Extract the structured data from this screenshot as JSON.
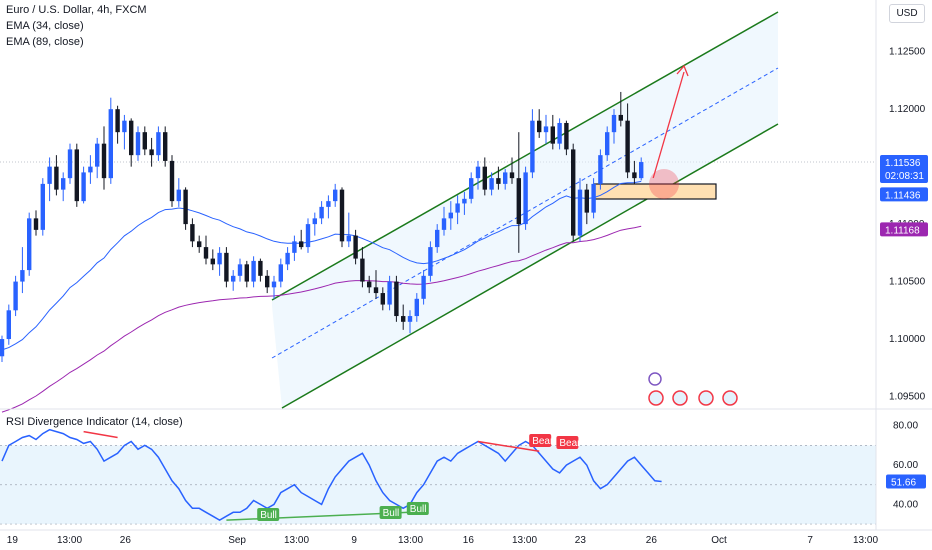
{
  "legend": {
    "title": "Euro / U.S. Dollar, 4h, FXCM",
    "ema1": "EMA (34, close)",
    "ema2": "EMA (89, close)"
  },
  "rsi_legend": "RSI Divergence Indicator (14, close)",
  "currency": "USD",
  "price_axis": {
    "ticks": [
      "1.12500",
      "1.12000",
      "1.11500",
      "1.11000",
      "1.10500",
      "1.10000",
      "1.09500"
    ],
    "ticks_values": [
      1.125,
      1.12,
      1.115,
      1.11,
      1.105,
      1.1,
      1.095
    ],
    "last_price": "1.11536",
    "countdown": "02:08:31",
    "ema34_value": "1.11436",
    "ema89_value": "1.11168"
  },
  "rsi_axis": {
    "ticks": [
      "80.00",
      "60.00",
      "40.00"
    ],
    "ticks_values": [
      80,
      60,
      40
    ],
    "current": "51.66"
  },
  "time_axis": [
    "19",
    "13:00",
    "26",
    "Sep",
    "13:00",
    "9",
    "13:00",
    "16",
    "13:00",
    "23",
    "26",
    "Oct",
    "7",
    "13:00"
  ],
  "signals": [
    "Bull",
    "Bull",
    "Bull",
    "Bear",
    "Bear"
  ],
  "colors": {
    "up": "#2962ff",
    "down": "#131722",
    "ema34": "#2962ff",
    "ema89": "#9c27b0",
    "channel": "#1b7a1b",
    "rsi": "#2962ff",
    "bull": "#4caf50",
    "bear": "#f23645",
    "arrow": "#f23645",
    "zone": "#ffe0b2"
  },
  "chart_data": [
    {
      "type": "candlestick",
      "title": "Euro / U.S. Dollar, 4h, FXCM",
      "ylim": [
        1.094,
        1.129
      ],
      "candles": [
        [
          1.0985,
          1.1003,
          1.098,
          1.1
        ],
        [
          1.1,
          1.103,
          1.0995,
          1.1025
        ],
        [
          1.1025,
          1.1055,
          1.102,
          1.105
        ],
        [
          1.105,
          1.108,
          1.104,
          1.106
        ],
        [
          1.106,
          1.111,
          1.1055,
          1.1105
        ],
        [
          1.1105,
          1.1112,
          1.109,
          1.1095
        ],
        [
          1.1095,
          1.114,
          1.109,
          1.1135
        ],
        [
          1.1135,
          1.1158,
          1.112,
          1.115
        ],
        [
          1.115,
          1.116,
          1.1125,
          1.113
        ],
        [
          1.113,
          1.1145,
          1.112,
          1.114
        ],
        [
          1.114,
          1.117,
          1.1135,
          1.1165
        ],
        [
          1.1165,
          1.117,
          1.1115,
          1.112
        ],
        [
          1.112,
          1.115,
          1.1118,
          1.1145
        ],
        [
          1.1145,
          1.116,
          1.1135,
          1.115
        ],
        [
          1.115,
          1.1175,
          1.114,
          1.117
        ],
        [
          1.117,
          1.1185,
          1.113,
          1.114
        ],
        [
          1.114,
          1.121,
          1.1135,
          1.12
        ],
        [
          1.12,
          1.1203,
          1.117,
          1.118
        ],
        [
          1.118,
          1.1195,
          1.1165,
          1.119
        ],
        [
          1.119,
          1.1192,
          1.115,
          1.116
        ],
        [
          1.116,
          1.1185,
          1.1155,
          1.118
        ],
        [
          1.118,
          1.1185,
          1.116,
          1.1165
        ],
        [
          1.1165,
          1.1175,
          1.115,
          1.116
        ],
        [
          1.116,
          1.1185,
          1.1155,
          1.118
        ],
        [
          1.118,
          1.1185,
          1.115,
          1.1155
        ],
        [
          1.1155,
          1.116,
          1.1115,
          1.112
        ],
        [
          1.112,
          1.114,
          1.1115,
          1.113
        ],
        [
          1.113,
          1.1132,
          1.1095,
          1.11
        ],
        [
          1.11,
          1.1105,
          1.108,
          1.1085
        ],
        [
          1.1085,
          1.109,
          1.1075,
          1.108
        ],
        [
          1.108,
          1.109,
          1.1065,
          1.107
        ],
        [
          1.107,
          1.1078,
          1.106,
          1.1065
        ],
        [
          1.1065,
          1.108,
          1.1055,
          1.1075
        ],
        [
          1.1075,
          1.108,
          1.1045,
          1.105
        ],
        [
          1.105,
          1.106,
          1.1042,
          1.1055
        ],
        [
          1.1055,
          1.107,
          1.105,
          1.1065
        ],
        [
          1.1065,
          1.1068,
          1.1045,
          1.105
        ],
        [
          1.105,
          1.1072,
          1.1045,
          1.1068
        ],
        [
          1.1068,
          1.107,
          1.105,
          1.1055
        ],
        [
          1.1055,
          1.106,
          1.104,
          1.1045
        ],
        [
          1.1045,
          1.1055,
          1.1035,
          1.105
        ],
        [
          1.105,
          1.107,
          1.1045,
          1.1065
        ],
        [
          1.1065,
          1.108,
          1.106,
          1.1075
        ],
        [
          1.1075,
          1.109,
          1.1068,
          1.1085
        ],
        [
          1.1085,
          1.1095,
          1.1078,
          1.108
        ],
        [
          1.108,
          1.1105,
          1.1075,
          1.11
        ],
        [
          1.11,
          1.111,
          1.109,
          1.1105
        ],
        [
          1.1105,
          1.112,
          1.11,
          1.1115
        ],
        [
          1.1115,
          1.1125,
          1.1105,
          1.112
        ],
        [
          1.112,
          1.1135,
          1.1115,
          1.113
        ],
        [
          1.113,
          1.1132,
          1.108,
          1.1085
        ],
        [
          1.1085,
          1.111,
          1.108,
          1.109
        ],
        [
          1.109,
          1.1095,
          1.1065,
          1.107
        ],
        [
          1.107,
          1.108,
          1.1045,
          1.105
        ],
        [
          1.105,
          1.1055,
          1.104,
          1.1045
        ],
        [
          1.1045,
          1.106,
          1.1035,
          1.104
        ],
        [
          1.104,
          1.1045,
          1.1025,
          1.103
        ],
        [
          1.103,
          1.1055,
          1.1025,
          1.105
        ],
        [
          1.105,
          1.1055,
          1.1015,
          1.102
        ],
        [
          1.102,
          1.103,
          1.1008,
          1.1015
        ],
        [
          1.1015,
          1.1025,
          1.1005,
          1.102
        ],
        [
          1.102,
          1.104,
          1.1015,
          1.1035
        ],
        [
          1.1035,
          1.106,
          1.103,
          1.1055
        ],
        [
          1.1055,
          1.1085,
          1.105,
          1.108
        ],
        [
          1.108,
          1.11,
          1.1075,
          1.1095
        ],
        [
          1.1095,
          1.1115,
          1.109,
          1.1105
        ],
        [
          1.1105,
          1.112,
          1.1095,
          1.111
        ],
        [
          1.111,
          1.1125,
          1.11,
          1.1118
        ],
        [
          1.1118,
          1.1128,
          1.1108,
          1.1122
        ],
        [
          1.1122,
          1.1145,
          1.1118,
          1.114
        ],
        [
          1.114,
          1.1155,
          1.113,
          1.115
        ],
        [
          1.115,
          1.1158,
          1.1125,
          1.113
        ],
        [
          1.113,
          1.1145,
          1.1125,
          1.114
        ],
        [
          1.114,
          1.115,
          1.113,
          1.1135
        ],
        [
          1.1135,
          1.1148,
          1.113,
          1.1145
        ],
        [
          1.1145,
          1.1158,
          1.1135,
          1.114
        ],
        [
          1.114,
          1.118,
          1.1075,
          1.11
        ],
        [
          1.11,
          1.115,
          1.1095,
          1.1145
        ],
        [
          1.1145,
          1.12,
          1.114,
          1.119
        ],
        [
          1.119,
          1.12,
          1.1175,
          1.118
        ],
        [
          1.118,
          1.1195,
          1.117,
          1.1185
        ],
        [
          1.1185,
          1.1195,
          1.1165,
          1.117
        ],
        [
          1.117,
          1.1192,
          1.1165,
          1.1188
        ],
        [
          1.1188,
          1.119,
          1.116,
          1.1165
        ],
        [
          1.1165,
          1.117,
          1.1085,
          1.109
        ],
        [
          1.109,
          1.114,
          1.1085,
          1.113
        ],
        [
          1.113,
          1.1135,
          1.11,
          1.111
        ],
        [
          1.111,
          1.114,
          1.1105,
          1.1135
        ],
        [
          1.1135,
          1.1165,
          1.113,
          1.116
        ],
        [
          1.116,
          1.1185,
          1.1155,
          1.118
        ],
        [
          1.118,
          1.12,
          1.117,
          1.1195
        ],
        [
          1.1195,
          1.1215,
          1.1185,
          1.119
        ],
        [
          1.119,
          1.1205,
          1.114,
          1.1145
        ],
        [
          1.1145,
          1.1155,
          1.1135,
          1.114
        ],
        [
          1.114,
          1.1158,
          1.1138,
          1.1154
        ]
      ],
      "series": [
        {
          "name": "EMA (34, close)"
        },
        {
          "name": "EMA (89, close)"
        }
      ]
    },
    {
      "type": "line",
      "title": "RSI Divergence Indicator (14, close)",
      "ylim": [
        28,
        88
      ],
      "values": [
        62,
        70,
        72,
        74,
        75,
        73,
        76,
        78,
        77,
        76,
        74,
        73,
        71,
        72,
        68,
        62,
        64,
        66,
        70,
        72,
        68,
        70,
        68,
        64,
        58,
        52,
        48,
        42,
        38,
        38,
        36,
        34,
        32,
        34,
        36,
        36,
        38,
        42,
        40,
        38,
        40,
        46,
        48,
        50,
        46,
        44,
        42,
        40,
        48,
        54,
        58,
        62,
        64,
        66,
        60,
        52,
        46,
        42,
        40,
        38,
        40,
        46,
        50,
        56,
        62,
        64,
        62,
        66,
        68,
        70,
        72,
        70,
        68,
        66,
        62,
        66,
        70,
        72,
        70,
        66,
        62,
        58,
        56,
        60,
        62,
        64,
        60,
        52,
        48,
        50,
        54,
        58,
        62,
        64,
        60,
        56,
        52,
        51.66
      ],
      "bull_signals": 3,
      "bear_signals": 2
    }
  ]
}
